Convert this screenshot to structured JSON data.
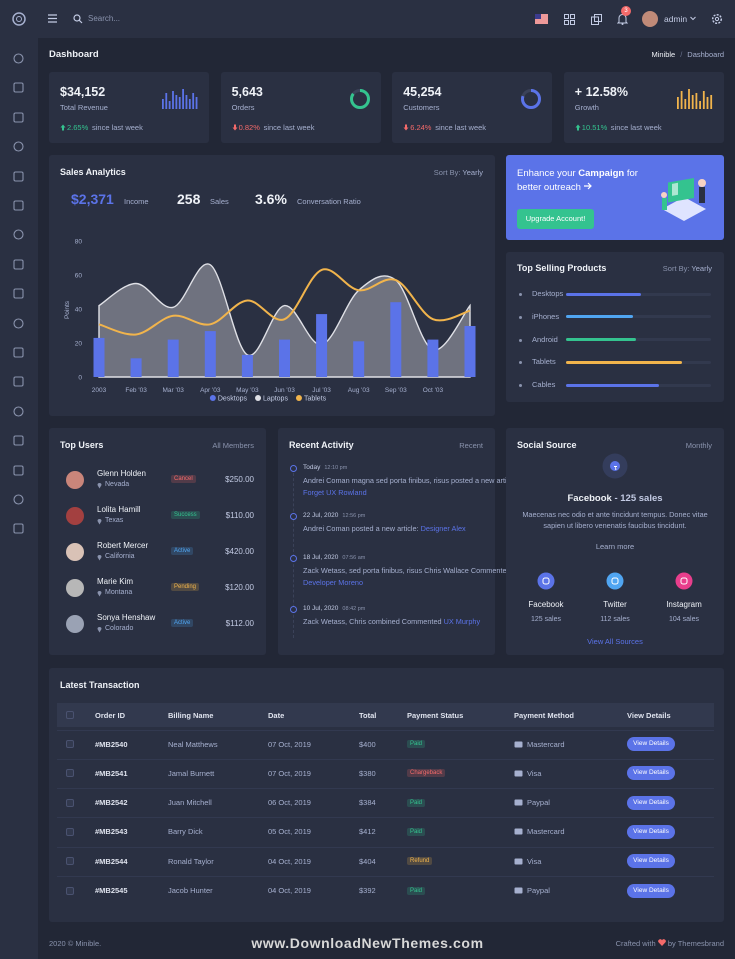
{
  "header": {
    "search_placeholder": "Search...",
    "notification_count": 3,
    "user": "admin"
  },
  "page_title": "Dashboard",
  "breadcrumb": [
    "Minible",
    "Dashboard"
  ],
  "stats": [
    {
      "value": "$34,152",
      "label": "Total Revenue",
      "change": "2.65%",
      "trend": "up",
      "note": "since last week",
      "chart": {
        "type": "bar",
        "color": "#5b73e8",
        "values": [
          5,
          8,
          4,
          9,
          7,
          6,
          10,
          7,
          5,
          8,
          6
        ]
      }
    },
    {
      "value": "5,643",
      "label": "Orders",
      "change": "0.82%",
      "trend": "down",
      "note": "since last week",
      "chart": {
        "type": "radial",
        "color": "#34c38f",
        "value": 85
      }
    },
    {
      "value": "45,254",
      "label": "Customers",
      "change": "6.24%",
      "trend": "down",
      "note": "since last week",
      "chart": {
        "type": "radial",
        "color": "#5b73e8",
        "value": 80
      }
    },
    {
      "value": "+ 12.58%",
      "label": "Growth",
      "change": "10.51%",
      "trend": "up",
      "note": "since last week",
      "chart": {
        "type": "bar",
        "color": "#f1b44c",
        "values": [
          6,
          9,
          5,
          10,
          7,
          8,
          4,
          9,
          6,
          7
        ]
      }
    }
  ],
  "sales_analytics": {
    "title": "Sales Analytics",
    "sort_label": "Sort By:",
    "sort_value": "Yearly",
    "summary": [
      {
        "value": "$2,371",
        "label": "Income"
      },
      {
        "value": "258",
        "label": "Sales"
      },
      {
        "value": "3.6%",
        "label": "Conversation Ratio"
      }
    ]
  },
  "chart_data": {
    "type": "combo",
    "y_label": "Points",
    "categories": [
      "2003",
      "Feb '03",
      "Mar '03",
      "Apr '03",
      "May '03",
      "Jun '03",
      "Jul '03",
      "Aug '03",
      "Sep '03",
      "Oct '03",
      null
    ],
    "series": [
      {
        "name": "Desktops",
        "type": "bar",
        "color": "#5b73e8",
        "values": [
          23,
          11,
          22,
          27,
          13,
          22,
          37,
          21,
          44,
          22,
          30
        ]
      },
      {
        "name": "Laptops",
        "type": "area",
        "color": "#dfe0e6",
        "values": [
          42,
          55,
          41,
          66,
          13,
          42,
          19,
          51,
          57,
          16,
          42
        ]
      },
      {
        "name": "Tablets",
        "type": "line",
        "color": "#f1b44c",
        "values": [
          31,
          25,
          36,
          31,
          45,
          34,
          63,
          51,
          57,
          34,
          39
        ]
      }
    ],
    "ylim": [
      0,
      80
    ],
    "yticks": [
      0,
      20,
      40,
      60,
      80
    ],
    "grid": false
  },
  "campaign": {
    "text_before": "Enhance your",
    "highlight": "Campaign",
    "text_after": "for better outreach",
    "button": "Upgrade Account!"
  },
  "top_selling": {
    "title": "Top Selling Products",
    "sort_label": "Sort By:",
    "sort_value": "Yearly",
    "items": [
      {
        "name": "Desktops",
        "value": 52,
        "color": "#5b73e8"
      },
      {
        "name": "iPhones",
        "value": 46,
        "color": "#50a5f1"
      },
      {
        "name": "Android",
        "value": 48,
        "color": "#34c38f"
      },
      {
        "name": "Tablets",
        "value": 80,
        "color": "#f1b44c"
      },
      {
        "name": "Cables",
        "value": 64,
        "color": "#5b73e8"
      }
    ]
  },
  "top_users": {
    "title": "Top Users",
    "filter": "All Members",
    "users": [
      {
        "name": "Glenn Holden",
        "location": "Nevada",
        "status": "Cancel",
        "status_color": "#f46a6a",
        "amount": "$250.00"
      },
      {
        "name": "Lolita Hamill",
        "location": "Texas",
        "status": "Success",
        "status_color": "#34c38f",
        "amount": "$110.00"
      },
      {
        "name": "Robert Mercer",
        "location": "California",
        "status": "Active",
        "status_color": "#50a5f1",
        "amount": "$420.00"
      },
      {
        "name": "Marie Kim",
        "location": "Montana",
        "status": "Pending",
        "status_color": "#f1b44c",
        "amount": "$120.00"
      },
      {
        "name": "Sonya Henshaw",
        "location": "Colorado",
        "status": "Active",
        "status_color": "#50a5f1",
        "amount": "$112.00"
      }
    ]
  },
  "recent_activity": {
    "title": "Recent Activity",
    "filter": "Recent",
    "items": [
      {
        "date": "Today",
        "time": "12:10 pm",
        "text": "Andrei Coman magna sed porta finibus, risus posted a new article:",
        "link": "Forget UX Rowland"
      },
      {
        "date": "22 Jul, 2020",
        "time": "12:56 pm",
        "text": "Andrei Coman posted a new article:",
        "link": "Designer Alex"
      },
      {
        "date": "18 Jul, 2020",
        "time": "07:56 am",
        "text": "Zack Wetass, sed porta finibus, risus Chris Wallace Commented",
        "link": "Developer Moreno"
      },
      {
        "date": "10 Jul, 2020",
        "time": "08:42 pm",
        "text": "Zack Wetass, Chris combined Commented",
        "link": "UX Murphy"
      }
    ]
  },
  "social_source": {
    "title": "Social Source",
    "filter": "Monthly",
    "headline": "Facebook",
    "headline_sales": "- 125 sales",
    "description": "Maecenas nec odio et ante tincidunt tempus. Donec vitae sapien ut libero venenatis faucibus tincidunt.",
    "learn_more": "Learn more",
    "sources": [
      {
        "name": "Facebook",
        "sales": "125 sales",
        "color": "#5b73e8"
      },
      {
        "name": "Twitter",
        "sales": "112 sales",
        "color": "#50a5f1"
      },
      {
        "name": "Instagram",
        "sales": "104 sales",
        "color": "#e83e8c"
      }
    ],
    "view_all": "View All Sources"
  },
  "transactions": {
    "title": "Latest Transaction",
    "columns": [
      "Order ID",
      "Billing Name",
      "Date",
      "Total",
      "Payment Status",
      "Payment Method",
      "View Details"
    ],
    "rows": [
      {
        "id": "#MB2540",
        "name": "Neal Matthews",
        "date": "07 Oct, 2019",
        "total": "$400",
        "status": "Paid",
        "status_color": "#34c38f",
        "method": "Mastercard",
        "action": "View Details"
      },
      {
        "id": "#MB2541",
        "name": "Jamal Burnett",
        "date": "07 Oct, 2019",
        "total": "$380",
        "status": "Chargeback",
        "status_color": "#f46a6a",
        "method": "Visa",
        "action": "View Details"
      },
      {
        "id": "#MB2542",
        "name": "Juan Mitchell",
        "date": "06 Oct, 2019",
        "total": "$384",
        "status": "Paid",
        "status_color": "#34c38f",
        "method": "Paypal",
        "action": "View Details"
      },
      {
        "id": "#MB2543",
        "name": "Barry Dick",
        "date": "05 Oct, 2019",
        "total": "$412",
        "status": "Paid",
        "status_color": "#34c38f",
        "method": "Mastercard",
        "action": "View Details"
      },
      {
        "id": "#MB2544",
        "name": "Ronald Taylor",
        "date": "04 Oct, 2019",
        "total": "$404",
        "status": "Refund",
        "status_color": "#f1b44c",
        "method": "Visa",
        "action": "View Details"
      },
      {
        "id": "#MB2545",
        "name": "Jacob Hunter",
        "date": "04 Oct, 2019",
        "total": "$392",
        "status": "Paid",
        "status_color": "#34c38f",
        "method": "Paypal",
        "action": "View Details"
      }
    ]
  },
  "footer": {
    "copyright": "2020 © Minible.",
    "crafted": "Crafted with",
    "by": "by Themesbrand"
  },
  "watermark": "www.DownloadNewThemes.com"
}
